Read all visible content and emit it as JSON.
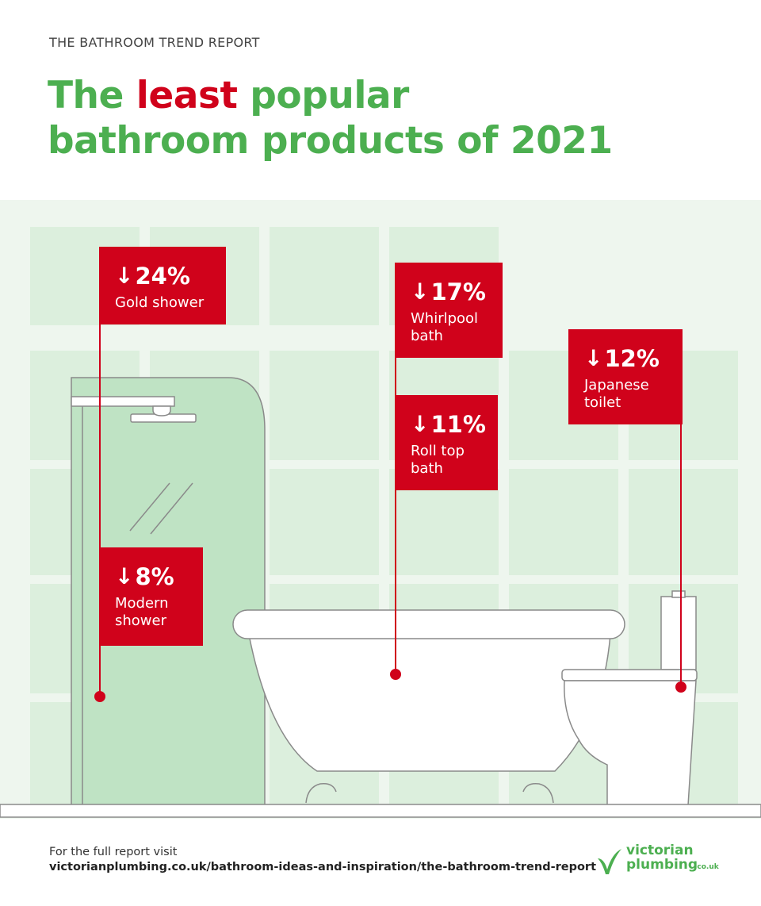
{
  "header": {
    "kicker": "THE BATHROOM TREND REPORT",
    "title_part1": "The ",
    "title_highlight": "least",
    "title_part2": " popular",
    "title_line2": "bathroom products of 2021"
  },
  "callouts": [
    {
      "id": "gold-shower",
      "arrow": "↓",
      "value": "24%",
      "label": "Gold shower"
    },
    {
      "id": "whirlpool-bath",
      "arrow": "↓",
      "value": "17%",
      "label": "Whirlpool bath"
    },
    {
      "id": "japanese-toilet",
      "arrow": "↓",
      "value": "12%",
      "label": "Japanese toilet"
    },
    {
      "id": "roll-top-bath",
      "arrow": "↓",
      "value": "11%",
      "label": "Roll top bath"
    },
    {
      "id": "modern-shower",
      "arrow": "↓",
      "value": "8%",
      "label": "Modern shower"
    }
  ],
  "footer": {
    "line1": "For the full report visit",
    "link": "victorianplumbing.co.uk/bathroom-ideas-and-inspiration/the-bathroom-trend-report"
  },
  "logo": {
    "word1": "victorian",
    "word2": "plumbing",
    "suffix": ".co.uk"
  },
  "colors": {
    "brand_green": "#4caf50",
    "accent_red": "#d0021b",
    "tile_light": "#eef6ee",
    "tile": "#dcefdd",
    "glass": "#bfe3c4"
  },
  "icons": [
    "arrow-down-icon",
    "checkmark-logo-icon"
  ]
}
